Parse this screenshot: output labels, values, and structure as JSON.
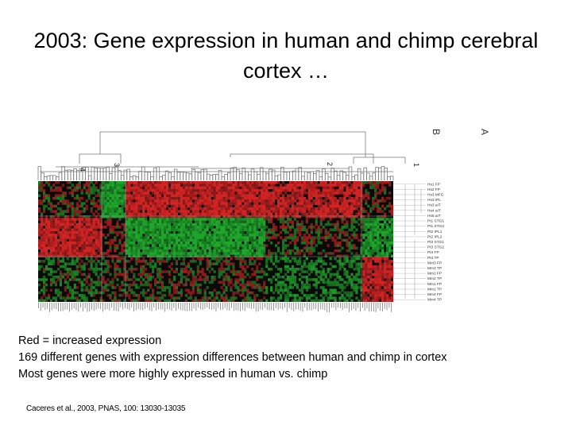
{
  "slide": {
    "title": "2003: Gene expression in human and chimp cerebral cortex …",
    "bullets": [
      "Red = increased expression",
      "169 different genes with expression differences between human and chimp in cortex",
      "Most genes were more highly expressed in human vs. chimp"
    ],
    "citation": "Caceres et al., 2003, PNAS, 100: 13030-13035"
  },
  "figure": {
    "cluster_labels": [
      "4",
      "3",
      "2",
      "1"
    ],
    "group_labels": [
      "B",
      "A"
    ],
    "sample_labels": [
      "Hs1 FP",
      "Hs2 FP",
      "Hs3 MFG",
      "Hs3 IPL",
      "Hs3 aIT",
      "Hs4 aIT",
      "Hs5 aIT",
      "Pt1 STG1",
      "Pt1 STG2",
      "Pt2 IPL1",
      "Pt2 IPL2",
      "Pt3 STG1",
      "Pt3 STG2",
      "Pt4 FP",
      "Pt4 TP",
      "Mm3 FP",
      "Mm3 TP",
      "Mm2 FP",
      "Mm2 TP",
      "Mm1 FP",
      "Mm1 TP",
      "Mm4 FP",
      "Mm4 TP"
    ],
    "colors": {
      "up": "#d42424",
      "down": "#1fa82c",
      "neutral": "#0a0a0a",
      "tree": "#7a7a7a"
    }
  }
}
